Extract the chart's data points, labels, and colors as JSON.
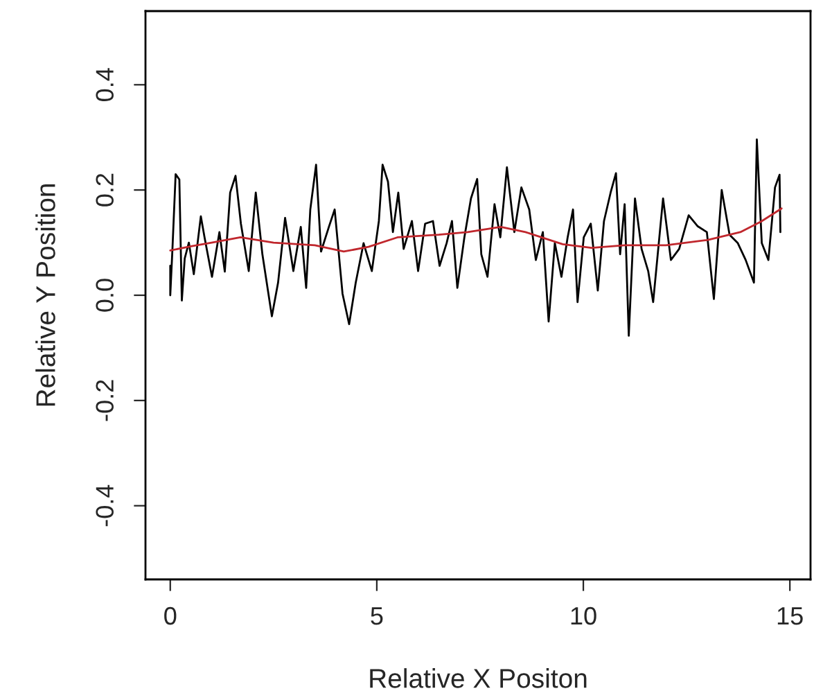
{
  "chart_data": {
    "type": "line",
    "xlabel": "Relative X Positon",
    "ylabel": "Relative Y Position",
    "xlim": [
      -0.6,
      15.5
    ],
    "ylim": [
      -0.54,
      0.54
    ],
    "xticks": [
      0,
      5,
      10,
      15
    ],
    "yticks": [
      -0.4,
      -0.2,
      {
        "value": 0,
        "label": "0.0"
      },
      0.2,
      0.4
    ],
    "grid": false,
    "legend": false,
    "series": [
      {
        "color": "#000000",
        "x": [
          0,
          0.0,
          0.05,
          0.13,
          0.22,
          0.28,
          0.35,
          0.45,
          0.57,
          0.74,
          0.83,
          1.01,
          1.19,
          1.32,
          1.45,
          1.58,
          1.71,
          1.9,
          2.07,
          2.23,
          2.46,
          2.61,
          2.78,
          2.98,
          3.16,
          3.29,
          3.39,
          3.53,
          3.65,
          3.84,
          3.98,
          4.17,
          4.33,
          4.49,
          4.68,
          4.88,
          5.05,
          5.14,
          5.27,
          5.39,
          5.52,
          5.65,
          5.85,
          6.0,
          6.17,
          6.36,
          6.52,
          6.69,
          6.82,
          6.95,
          7.12,
          7.28,
          7.43,
          7.53,
          7.68,
          7.85,
          7.99,
          8.15,
          8.33,
          8.5,
          8.69,
          8.85,
          9.02,
          9.16,
          9.31,
          9.47,
          9.62,
          9.75,
          9.86,
          10.01,
          10.18,
          10.35,
          10.5,
          10.66,
          10.79,
          10.89,
          11.0,
          11.1,
          11.25,
          11.41,
          11.57,
          11.69,
          11.93,
          12.12,
          12.32,
          12.55,
          12.77,
          12.99,
          13.16,
          13.35,
          13.54,
          13.74,
          13.93,
          14.13,
          14.2,
          14.32,
          14.48,
          14.64,
          14.75,
          14.77
        ],
        "values": [
          0.056,
          0.0,
          0.083,
          0.23,
          0.22,
          -0.01,
          0.07,
          0.1,
          0.04,
          0.15,
          0.11,
          0.035,
          0.12,
          0.045,
          0.195,
          0.227,
          0.136,
          0.046,
          0.195,
          0.078,
          -0.04,
          0.024,
          0.147,
          0.046,
          0.13,
          0.014,
          0.163,
          0.248,
          0.083,
          0.13,
          0.163,
          0.003,
          -0.055,
          0.024,
          0.099,
          0.046,
          0.141,
          0.248,
          0.216,
          0.12,
          0.195,
          0.088,
          0.141,
          0.046,
          0.136,
          0.141,
          0.056,
          0.099,
          0.141,
          0.014,
          0.11,
          0.184,
          0.221,
          0.078,
          0.035,
          0.173,
          0.11,
          0.243,
          0.12,
          0.205,
          0.163,
          0.067,
          0.12,
          -0.05,
          0.099,
          0.035,
          0.11,
          0.163,
          -0.013,
          0.11,
          0.136,
          0.009,
          0.141,
          0.195,
          0.232,
          0.078,
          0.173,
          -0.077,
          0.184,
          0.088,
          0.046,
          -0.013,
          0.184,
          0.067,
          0.088,
          0.152,
          0.131,
          0.12,
          -0.007,
          0.2,
          0.115,
          0.099,
          0.067,
          0.024,
          0.296,
          0.099,
          0.067,
          0.205,
          0.229,
          0.12
        ]
      },
      {
        "color": "#c0272d",
        "x": [
          0,
          0.5,
          1.0,
          1.7,
          2.5,
          3.5,
          4.2,
          4.8,
          5.5,
          6.5,
          7.2,
          8.0,
          8.6,
          9.5,
          10.2,
          11.0,
          12.0,
          13.0,
          13.8,
          14.3,
          14.8
        ],
        "values": [
          0.085,
          0.093,
          0.1,
          0.11,
          0.1,
          0.095,
          0.083,
          0.092,
          0.11,
          0.115,
          0.12,
          0.13,
          0.12,
          0.097,
          0.09,
          0.095,
          0.095,
          0.105,
          0.12,
          0.14,
          0.165
        ]
      }
    ]
  }
}
